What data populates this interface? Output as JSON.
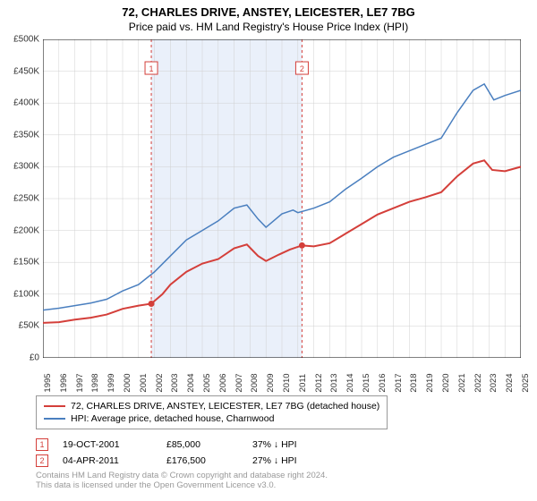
{
  "title": "72, CHARLES DRIVE, ANSTEY, LEICESTER, LE7 7BG",
  "subtitle": "Price paid vs. HM Land Registry's House Price Index (HPI)",
  "chart": {
    "type": "line",
    "background_color": "#ffffff",
    "grid_color": "#d0d0d0",
    "axis_color": "#000000",
    "highlighted_band": {
      "x_start": 2001.8,
      "x_end": 2011.26,
      "fill": "#eaf0fa"
    },
    "band_border_dash": "3,3",
    "band_border_color": "#d43f3a",
    "xlim": [
      1995,
      2025
    ],
    "x_ticks": [
      1995,
      1996,
      1997,
      1998,
      1999,
      2000,
      2001,
      2002,
      2003,
      2004,
      2005,
      2006,
      2007,
      2008,
      2009,
      2010,
      2011,
      2012,
      2013,
      2014,
      2015,
      2016,
      2017,
      2018,
      2019,
      2020,
      2021,
      2022,
      2023,
      2024,
      2025
    ],
    "ylim": [
      0,
      500000
    ],
    "y_ticks": [
      0,
      50000,
      100000,
      150000,
      200000,
      250000,
      300000,
      350000,
      400000,
      450000,
      500000
    ],
    "y_tick_labels": [
      "£0",
      "£50K",
      "£100K",
      "£150K",
      "£200K",
      "£250K",
      "£300K",
      "£350K",
      "£400K",
      "£450K",
      "£500K"
    ],
    "series": [
      {
        "key": "subject",
        "label": "72, CHARLES DRIVE, ANSTEY, LEICESTER, LE7 7BG (detached house)",
        "color": "#d43f3a",
        "width": 2,
        "points": [
          [
            1995.0,
            55000
          ],
          [
            1996,
            56000
          ],
          [
            1997,
            60000
          ],
          [
            1998,
            63000
          ],
          [
            1999,
            68000
          ],
          [
            2000,
            77000
          ],
          [
            2001,
            82000
          ],
          [
            2001.8,
            85000
          ],
          [
            2002.5,
            100000
          ],
          [
            2003,
            115000
          ],
          [
            2004,
            135000
          ],
          [
            2005,
            148000
          ],
          [
            2006,
            155000
          ],
          [
            2007,
            172000
          ],
          [
            2007.8,
            178000
          ],
          [
            2008.5,
            160000
          ],
          [
            2009,
            152000
          ],
          [
            2009.8,
            162000
          ],
          [
            2010.5,
            170000
          ],
          [
            2011.26,
            176500
          ],
          [
            2012,
            175000
          ],
          [
            2013,
            180000
          ],
          [
            2014,
            195000
          ],
          [
            2015,
            210000
          ],
          [
            2016,
            225000
          ],
          [
            2017,
            235000
          ],
          [
            2018,
            245000
          ],
          [
            2019,
            252000
          ],
          [
            2020,
            260000
          ],
          [
            2021,
            285000
          ],
          [
            2022,
            305000
          ],
          [
            2022.7,
            310000
          ],
          [
            2023.2,
            295000
          ],
          [
            2024,
            293000
          ],
          [
            2025,
            300000
          ]
        ]
      },
      {
        "key": "hpi",
        "label": "HPI: Average price, detached house, Charnwood",
        "color": "#4a7fbf",
        "width": 1.5,
        "points": [
          [
            1995.0,
            75000
          ],
          [
            1996,
            78000
          ],
          [
            1997,
            82000
          ],
          [
            1998,
            86000
          ],
          [
            1999,
            92000
          ],
          [
            2000,
            105000
          ],
          [
            2001,
            115000
          ],
          [
            2002,
            135000
          ],
          [
            2003,
            160000
          ],
          [
            2004,
            185000
          ],
          [
            2005,
            200000
          ],
          [
            2006,
            215000
          ],
          [
            2007,
            235000
          ],
          [
            2007.8,
            240000
          ],
          [
            2008.5,
            218000
          ],
          [
            2009,
            205000
          ],
          [
            2010,
            226000
          ],
          [
            2010.7,
            232000
          ],
          [
            2011,
            228000
          ],
          [
            2012,
            235000
          ],
          [
            2013,
            245000
          ],
          [
            2014,
            265000
          ],
          [
            2015,
            282000
          ],
          [
            2016,
            300000
          ],
          [
            2017,
            315000
          ],
          [
            2018,
            325000
          ],
          [
            2019,
            335000
          ],
          [
            2020,
            345000
          ],
          [
            2021,
            385000
          ],
          [
            2022,
            420000
          ],
          [
            2022.7,
            430000
          ],
          [
            2023.3,
            405000
          ],
          [
            2024,
            412000
          ],
          [
            2025,
            420000
          ]
        ]
      }
    ],
    "sale_markers": [
      {
        "n": "1",
        "x": 2001.8,
        "y": 85000,
        "label_y": 455000,
        "color": "#d43f3a"
      },
      {
        "n": "2",
        "x": 2011.26,
        "y": 176500,
        "label_y": 455000,
        "color": "#d43f3a"
      }
    ]
  },
  "sales": [
    {
      "n": "1",
      "date": "19-OCT-2001",
      "price": "£85,000",
      "hpi_delta": "37% ↓ HPI",
      "color": "#d43f3a"
    },
    {
      "n": "2",
      "date": "04-APR-2011",
      "price": "£176,500",
      "hpi_delta": "27% ↓ HPI",
      "color": "#d43f3a"
    }
  ],
  "footnote_l1": "Contains HM Land Registry data © Crown copyright and database right 2024.",
  "footnote_l2": "This data is licensed under the Open Government Licence v3.0.",
  "font_sizes": {
    "title": 13,
    "subtitle": 12,
    "axis": 10,
    "legend": 10.5,
    "footnote": 9.5
  }
}
